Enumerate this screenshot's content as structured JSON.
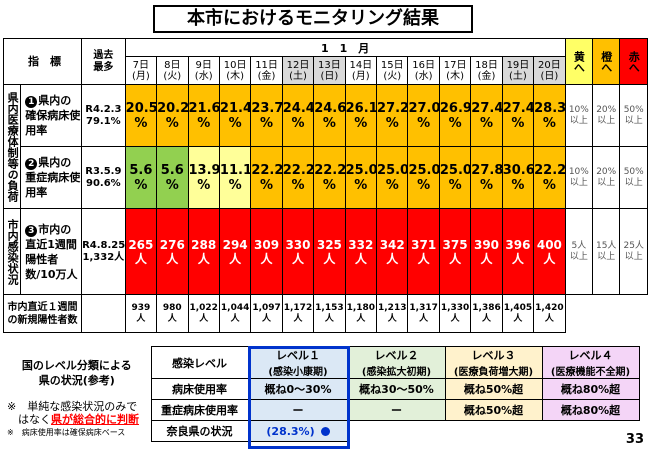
{
  "title": "本市におけるモニタリング結果",
  "header": {
    "indicator": "指　標",
    "past_max": "過去\n最多",
    "month": "1　1　月",
    "days": [
      {
        "d": "7日",
        "w": "(月)",
        "holiday": false
      },
      {
        "d": "8日",
        "w": "(火)",
        "holiday": false
      },
      {
        "d": "9日",
        "w": "(水)",
        "holiday": false
      },
      {
        "d": "10日",
        "w": "(木)",
        "holiday": false
      },
      {
        "d": "11日",
        "w": "(金)",
        "holiday": false
      },
      {
        "d": "12日",
        "w": "(土)",
        "holiday": true
      },
      {
        "d": "13日",
        "w": "(日)",
        "holiday": true
      },
      {
        "d": "14日",
        "w": "(月)",
        "holiday": false
      },
      {
        "d": "15日",
        "w": "(火)",
        "holiday": false
      },
      {
        "d": "16日",
        "w": "(水)",
        "holiday": false
      },
      {
        "d": "17日",
        "w": "(木)",
        "holiday": false
      },
      {
        "d": "18日",
        "w": "(金)",
        "holiday": false
      },
      {
        "d": "19日",
        "w": "(土)",
        "holiday": true
      },
      {
        "d": "20日",
        "w": "(日)",
        "holiday": true
      }
    ],
    "levels": [
      "黄へ",
      "橙へ",
      "赤へ"
    ]
  },
  "side_groups": {
    "medical": "県内医療体制等の負荷",
    "infection": "市内感染状況"
  },
  "rows": [
    {
      "label_num": "1",
      "label": "県内の確保病床使用率",
      "past": "R4.2.3\n79.1%",
      "values": [
        "20.5\n%",
        "20.2\n%",
        "21.6\n%",
        "21.4\n%",
        "23.7\n%",
        "24.4\n%",
        "24.6\n%",
        "26.1\n%",
        "27.2\n%",
        "27.0\n%",
        "26.9\n%",
        "27.4\n%",
        "27.4\n%",
        "28.3\n%"
      ],
      "colors": [
        "o",
        "o",
        "o",
        "o",
        "o",
        "o",
        "o",
        "o",
        "o",
        "o",
        "o",
        "o",
        "o",
        "o"
      ],
      "thresholds": [
        "10%\n以上",
        "20%\n以上",
        "50%\n以上"
      ]
    },
    {
      "label_num": "2",
      "label": "県内の重症病床使用率",
      "past": "R3.5.9\n90.6%",
      "values": [
        "5.6\n%",
        "5.6\n%",
        "13.9\n%",
        "11.1\n%",
        "22.2\n%",
        "22.2\n%",
        "22.2\n%",
        "25.0\n%",
        "25.0\n%",
        "25.0\n%",
        "25.0\n%",
        "27.8\n%",
        "30.6\n%",
        "22.2\n%"
      ],
      "colors": [
        "g",
        "g",
        "ly",
        "ly",
        "o",
        "o",
        "o",
        "o",
        "o",
        "o",
        "o",
        "o",
        "o",
        "o"
      ],
      "thresholds": [
        "10%\n以上",
        "20%\n以上",
        "50%\n以上"
      ]
    },
    {
      "label_num": "3",
      "label": "市内の直近1週間陽性者数/10万人",
      "past": "R4.8.25\n1,332人",
      "values": [
        "265\n人",
        "276\n人",
        "288\n人",
        "294\n人",
        "309\n人",
        "330\n人",
        "325\n人",
        "332\n人",
        "342\n人",
        "371\n人",
        "375\n人",
        "390\n人",
        "396\n人",
        "400\n人"
      ],
      "colors": [
        "r",
        "r",
        "r",
        "r",
        "r",
        "r",
        "r",
        "r",
        "r",
        "r",
        "r",
        "r",
        "r",
        "r"
      ],
      "thresholds": [
        "5人\n以上",
        "15人\n以上",
        "25人\n以上"
      ]
    }
  ],
  "weekly": {
    "label": "市内直近１週間\nの新規陽性者数",
    "values": [
      "939\n人",
      "980\n人",
      "1,022\n人",
      "1,044\n人",
      "1,097\n人",
      "1,172\n人",
      "1,153\n人",
      "1,180\n人",
      "1,213\n人",
      "1,317\n人",
      "1,330\n人",
      "1,386\n人",
      "1,405\n人",
      "1,420\n人"
    ]
  },
  "level_table": {
    "left_title": "国のレベル分類による\n県の状況(参考)",
    "notes": [
      "※　単純な感染状況のみで",
      "　はなく",
      "県が総合的に判断",
      "※　病床使用率は確保病床ベース"
    ],
    "col_header": "感染レベル",
    "levels": [
      {
        "name": "レベル１",
        "sub": "(感染小康期)"
      },
      {
        "name": "レベル２",
        "sub": "(感染拡大初期)"
      },
      {
        "name": "レベル３",
        "sub": "(医療負荷増大期)"
      },
      {
        "name": "レベル４",
        "sub": "(医療機能不全期)"
      }
    ],
    "rows": [
      {
        "label": "病床使用率",
        "cells": [
          "概ね0～30%",
          "概ね30～50%",
          "概ね50%超",
          "概ね80%超"
        ]
      },
      {
        "label": "重症病床使用率",
        "cells": [
          "ー",
          "ー",
          "概ね50%超",
          "概ね80%超"
        ]
      },
      {
        "label": "奈良県の状況",
        "cells": [
          "(28.3%)",
          "",
          "",
          ""
        ]
      }
    ]
  },
  "page_number": "33"
}
